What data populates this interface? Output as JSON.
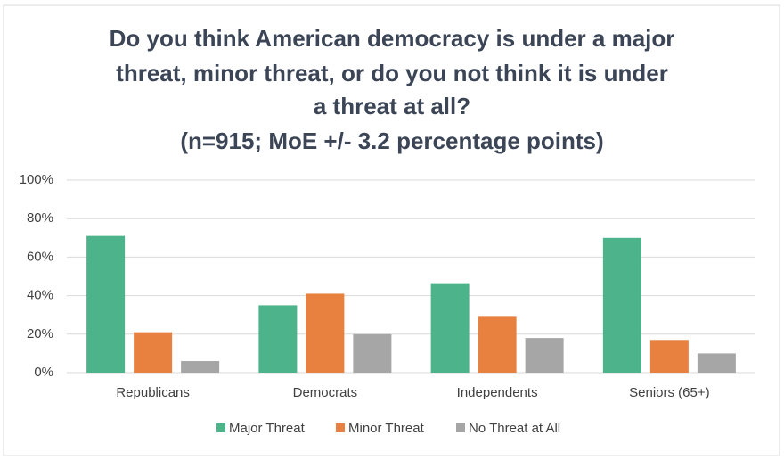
{
  "chart_data": {
    "type": "bar",
    "title": [
      "Do you think American democracy is under a major",
      "threat, minor threat, or do you not think it is under",
      "a threat at all?"
    ],
    "subtitle": "(n=915; MoE +/- 3.2 percentage points)",
    "categories": [
      "Republicans",
      "Democrats",
      "Independents",
      "Seniors (65+)"
    ],
    "series": [
      {
        "name": "Major Threat",
        "color": "#4db38a",
        "values": [
          71,
          35,
          46,
          70
        ]
      },
      {
        "name": "Minor Threat",
        "color": "#e8803f",
        "values": [
          21,
          41,
          29,
          17
        ]
      },
      {
        "name": "No Threat at All",
        "color": "#a6a6a6",
        "values": [
          6,
          20,
          18,
          10
        ]
      }
    ],
    "ylim": [
      0,
      100
    ],
    "yticks": [
      {
        "value": 0,
        "label": "0%"
      },
      {
        "value": 20,
        "label": "20%"
      },
      {
        "value": 40,
        "label": "40%"
      },
      {
        "value": 60,
        "label": "60%"
      },
      {
        "value": 80,
        "label": "80%"
      },
      {
        "value": 100,
        "label": "100%"
      }
    ],
    "grid": true,
    "legend": "bottom"
  }
}
